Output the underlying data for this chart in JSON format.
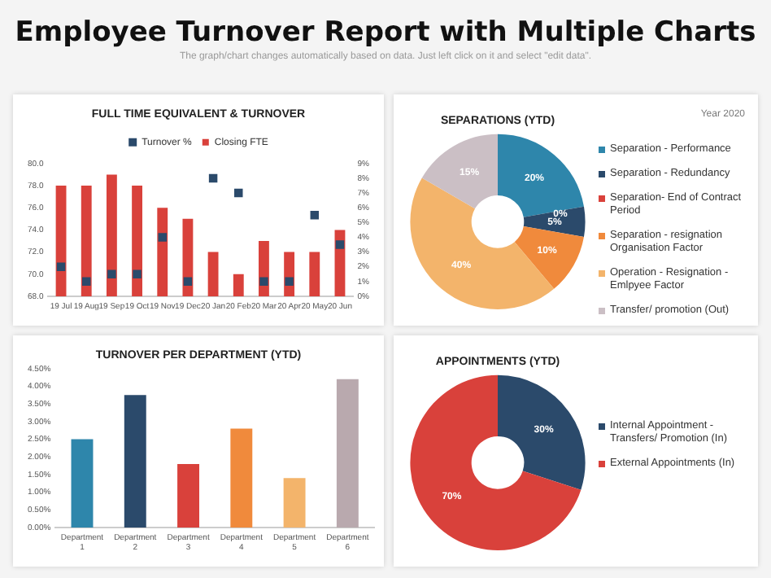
{
  "chart_data": [
    {
      "type": "other",
      "title": "Employee Turnover Report with Multiple Charts",
      "subtitle": "The graph/chart changes automatically based on data. Just left click on it and select \"edit data\"."
    },
    {
      "type": "bar",
      "title": "FULL TIME EQUIVALENT & TURNOVER",
      "categories": [
        "19 Jul",
        "19 Aug",
        "19 Sep",
        "19 Oct",
        "19 Nov",
        "19 Dec",
        "20 Jan",
        "20 Feb",
        "20 Mar",
        "20 Apr",
        "20 May",
        "20 Jun"
      ],
      "series": [
        {
          "name": "Closing FTE",
          "color": "#d9413b",
          "values": [
            78,
            78,
            79,
            78,
            76,
            75,
            72,
            70,
            73,
            72,
            72,
            74
          ]
        },
        {
          "name": "Turnover %",
          "type": "scatter",
          "axis": "y2",
          "marker": "square",
          "color": "#2b4a6b",
          "values": [
            2,
            1,
            1.5,
            1.5,
            4,
            1,
            8,
            7,
            1,
            1,
            5.5,
            3.5
          ]
        }
      ],
      "ylim": [
        68,
        80
      ],
      "yticks": [
        {
          "value": 68,
          "label": "68.0"
        },
        {
          "value": 70,
          "label": "70.0"
        },
        {
          "value": 72,
          "label": "72.0"
        },
        {
          "value": 74,
          "label": "74.0"
        },
        {
          "value": 76,
          "label": "76.0"
        },
        {
          "value": 78,
          "label": "78.0"
        },
        {
          "value": 80,
          "label": "80.0"
        }
      ],
      "y2lim": [
        0,
        9
      ],
      "y2ticks": [
        {
          "value": 0,
          "label": "0%"
        },
        {
          "value": 1,
          "label": "1%"
        },
        {
          "value": 2,
          "label": "2%"
        },
        {
          "value": 3,
          "label": "3%"
        },
        {
          "value": 4,
          "label": "4%"
        },
        {
          "value": 5,
          "label": "5%"
        },
        {
          "value": 6,
          "label": "6%"
        },
        {
          "value": 7,
          "label": "7%"
        },
        {
          "value": 8,
          "label": "8%"
        },
        {
          "value": 9,
          "label": "9%"
        }
      ],
      "legend": "top"
    },
    {
      "type": "donut",
      "title": "SEPARATIONS (YTD)",
      "annotations": [
        "Year 2020"
      ],
      "categories": [
        "Separation - Performance",
        "Separation - Redundancy",
        "Separation- End of Contract Period",
        "Separation - resignation Organisation Factor",
        "Operation - Resignation - Emlpyee Factor",
        "Transfer/ promotion (Out)"
      ],
      "values": [
        20,
        5,
        0,
        10,
        40,
        15
      ],
      "colors": [
        "#2e86ab",
        "#2b4a6b",
        "#d9413b",
        "#f08a3c",
        "#f3b46b",
        "#cbbfc5"
      ],
      "value_labels": [
        "20%",
        "5%",
        "0%",
        "10%",
        "40%",
        "15%"
      ],
      "legend": "right"
    },
    {
      "type": "bar",
      "title": "TURNOVER PER DEPARTMENT (YTD)",
      "categories": [
        "Department 1",
        "Department 2",
        "Department 3",
        "Department 4",
        "Department 5",
        "Department 6"
      ],
      "values": [
        2.5,
        3.75,
        1.8,
        2.8,
        1.4,
        4.2
      ],
      "colors": [
        "#2e86ab",
        "#2b4a6b",
        "#d9413b",
        "#f08a3c",
        "#f3b46b",
        "#b9a9ae"
      ],
      "ylim": [
        0,
        4.5
      ],
      "yticks": [
        {
          "value": 0,
          "label": "0.00%"
        },
        {
          "value": 0.5,
          "label": "0.50%"
        },
        {
          "value": 1,
          "label": "1.00%"
        },
        {
          "value": 1.5,
          "label": "1.50%"
        },
        {
          "value": 2,
          "label": "2.00%"
        },
        {
          "value": 2.5,
          "label": "2.50%"
        },
        {
          "value": 3,
          "label": "3.00%"
        },
        {
          "value": 3.5,
          "label": "3.50%"
        },
        {
          "value": 4,
          "label": "4.00%"
        },
        {
          "value": 4.5,
          "label": "4.50%"
        }
      ]
    },
    {
      "type": "donut",
      "title": "APPOINTMENTS (YTD)",
      "categories": [
        "Internal Appointment - Transfers/ Promotion (In)",
        "External Appointments (In)"
      ],
      "values": [
        30,
        70
      ],
      "colors": [
        "#2b4a6b",
        "#d9413b"
      ],
      "value_labels": [
        "30%",
        "70%"
      ],
      "legend": "right"
    }
  ]
}
